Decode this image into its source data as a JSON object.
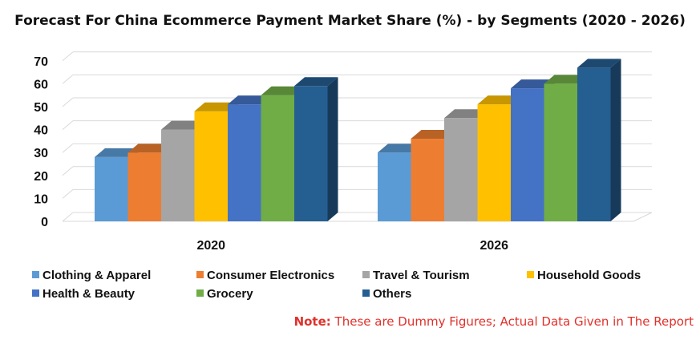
{
  "chart_data": {
    "type": "bar",
    "title": "Forecast For China Ecommerce Payment Market Share (%) - by Segments (2020 - 2026)",
    "categories": [
      "2020",
      "2026"
    ],
    "series": [
      {
        "name": "Clothing & Apparel",
        "values": [
          28,
          30
        ],
        "color": "#5b9bd5"
      },
      {
        "name": "Consumer Electronics",
        "values": [
          30,
          36
        ],
        "color": "#ed7d31"
      },
      {
        "name": "Travel & Tourism",
        "values": [
          40,
          45
        ],
        "color": "#a5a5a5"
      },
      {
        "name": "Household Goods",
        "values": [
          48,
          51
        ],
        "color": "#ffc000"
      },
      {
        "name": "Health & Beauty",
        "values": [
          51,
          58
        ],
        "color": "#4472c4"
      },
      {
        "name": "Grocery",
        "values": [
          55,
          60
        ],
        "color": "#70ad47"
      },
      {
        "name": "Others",
        "values": [
          59,
          67
        ],
        "color": "#255e91"
      }
    ],
    "yticks": [
      "0",
      "10",
      "20",
      "30",
      "40",
      "50",
      "60",
      "70"
    ],
    "ylim": [
      0,
      70
    ],
    "grid": true,
    "legend_position": "bottom",
    "three_d": true
  },
  "note": {
    "label": "Note:",
    "text": " These are Dummy Figures; Actual Data Given in The Report"
  }
}
